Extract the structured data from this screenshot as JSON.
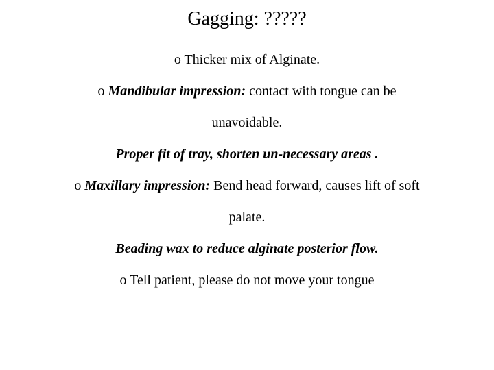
{
  "title": "Gagging: ?????",
  "lines": {
    "l1": "o Thicker mix of Alginate.",
    "l2a": "o ",
    "l2b": "Mandibular impression:",
    "l2c": " contact with tongue can be",
    "l3": "unavoidable.",
    "l4": "Proper fit of tray, shorten un-necessary areas .",
    "l5a": "o ",
    "l5b": "Maxillary impression:",
    "l5c": " Bend head forward, causes lift of soft",
    "l6": "palate.",
    "l7": "Beading wax to reduce alginate posterior flow.",
    "l8": "o Tell patient, please do not move your tongue"
  },
  "colors": {
    "background": "#ffffff",
    "text": "#000000"
  },
  "typography": {
    "title_fontsize": 28,
    "body_fontsize": 20,
    "font_family": "Palatino Linotype"
  }
}
